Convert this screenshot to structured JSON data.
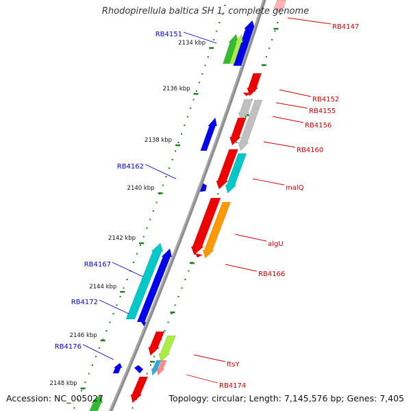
{
  "title": "Rhodopirellula baltica SH 1, complete genome",
  "footer": {
    "accession_label": "Accession:",
    "accession": "NC_005027",
    "topology_label": "Topology:",
    "topology": "circular",
    "length_label": "Length:",
    "length": "7,145,576 bp",
    "genes_label": "Genes:",
    "genes": "7,405"
  },
  "colors": {
    "backbone": "#8c8c8c",
    "tick": "#1f7a1f",
    "forward_label": "#cc0000",
    "reverse_label": "#0000cc",
    "red": "#ee0000",
    "blue": "#0000ee",
    "cyan": "#00c8c8",
    "green": "#33bb33",
    "lightgreen": "#aaee44",
    "orange": "#ff9900",
    "gray": "#c0c0c0",
    "pink": "#ffb3b3",
    "skyblue": "#33aadd",
    "salmon": "#ff8a8a"
  },
  "scale_ticks": [
    "2134 kbp",
    "2136 kbp",
    "2138 kbp",
    "2140 kbp",
    "2142 kbp",
    "2144 kbp",
    "2146 kbp",
    "2148 kbp"
  ],
  "forward_labels": [
    "RB4147",
    "RB4152",
    "RB4155",
    "RB4156",
    "RB4160",
    "malQ",
    "algU",
    "RB4166",
    "ftsY",
    "RB4174"
  ],
  "reverse_labels": [
    "RB4151",
    "RB4162",
    "RB4167",
    "RB4172",
    "RB4176"
  ]
}
